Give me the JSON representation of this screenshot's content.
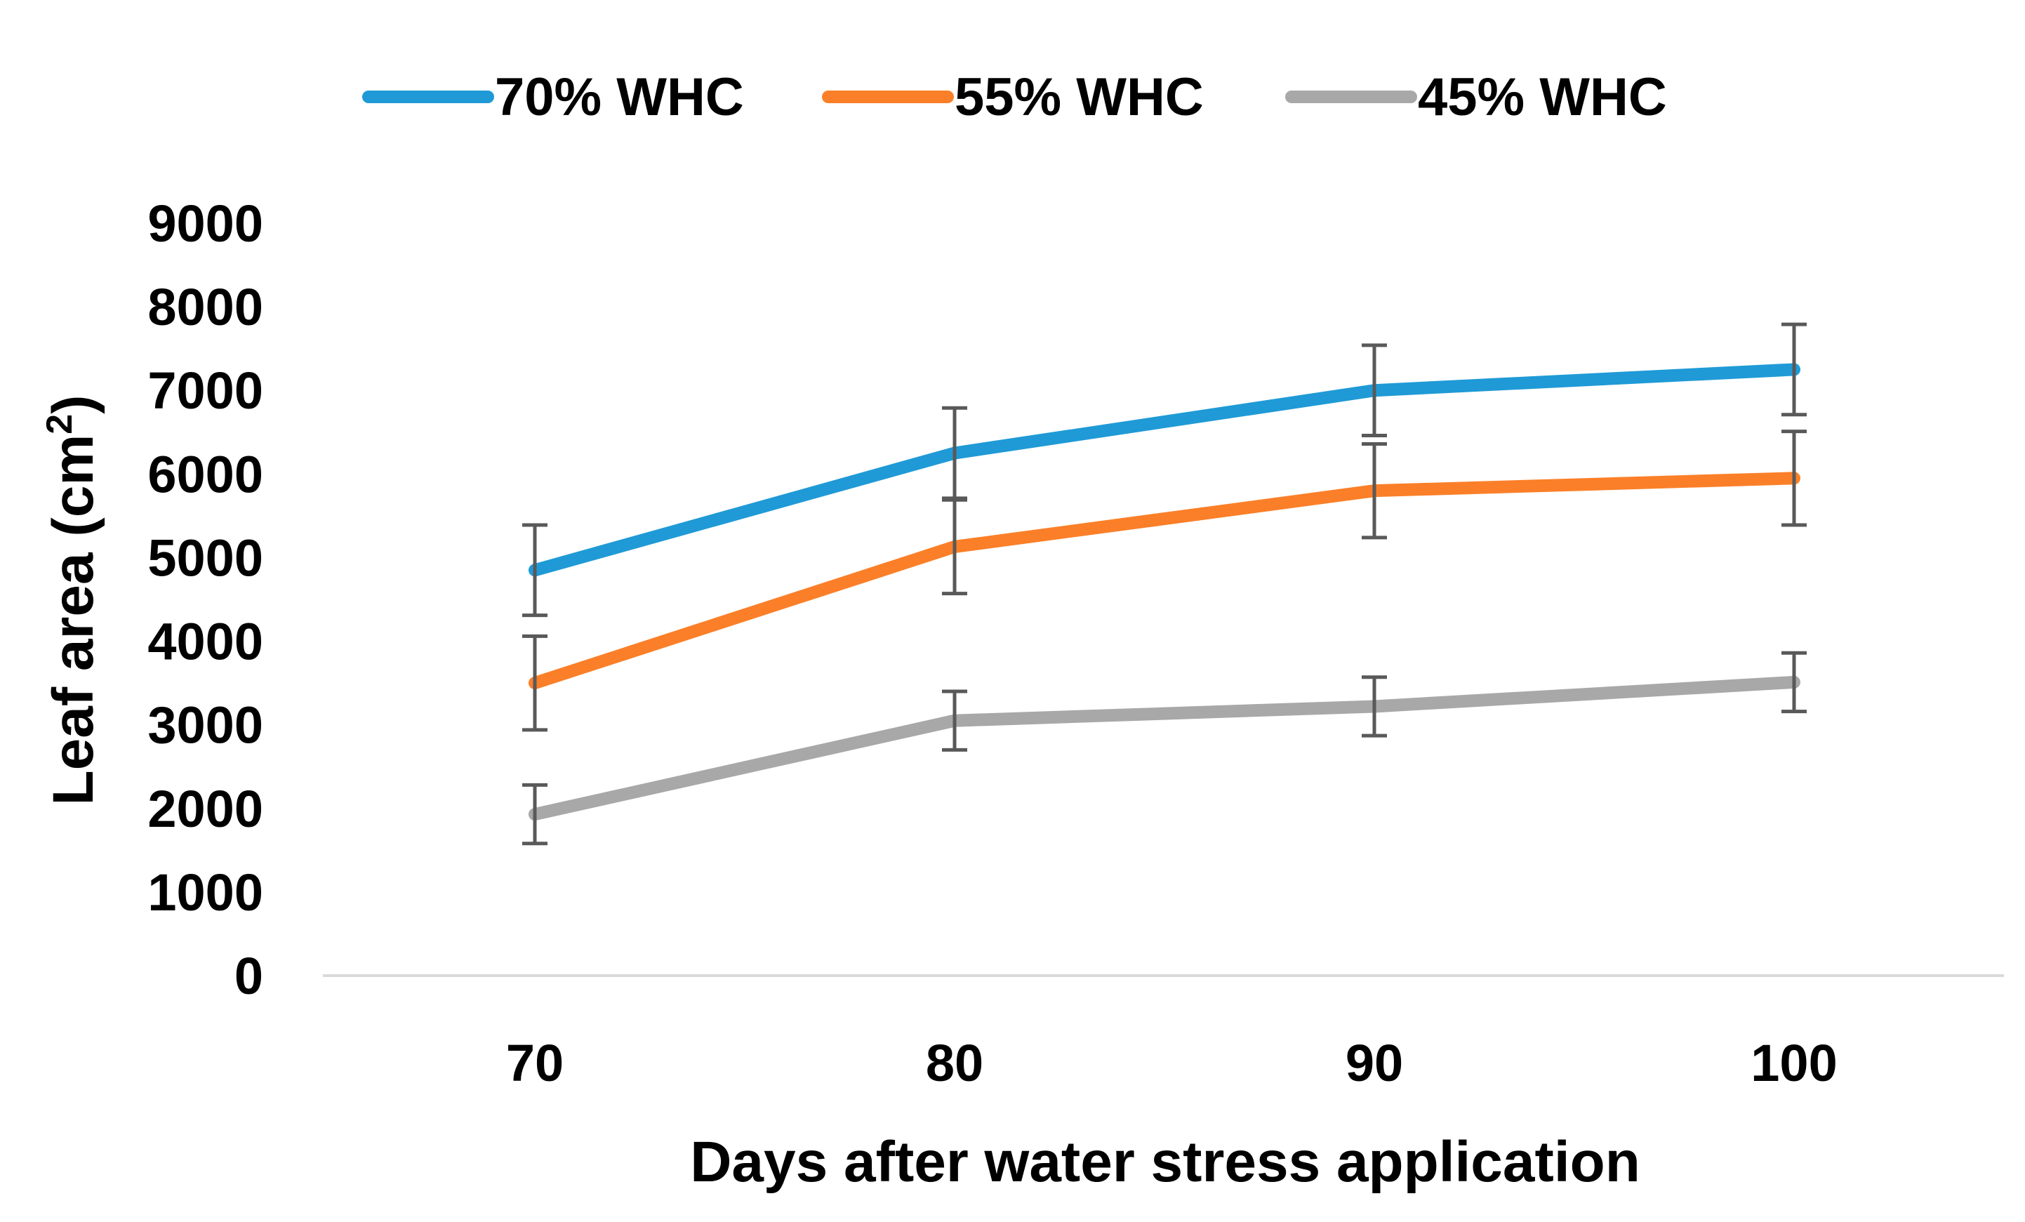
{
  "chart_data": {
    "type": "line",
    "title": "",
    "xlabel": "Days after water stress application",
    "ylabel": "Leaf area (cm",
    "ylabel_superscript": "2",
    "ylabel_close": ")",
    "categories": [
      "70",
      "80",
      "90",
      "100"
    ],
    "x": [
      70,
      80,
      90,
      100
    ],
    "ylim": [
      0,
      9000
    ],
    "yticks": [
      0,
      1000,
      2000,
      3000,
      4000,
      5000,
      6000,
      7000,
      8000,
      9000
    ],
    "ytick_labels": [
      "0",
      "1000",
      "2000",
      "3000",
      "4000",
      "5000",
      "6000",
      "7000",
      "8000",
      "9000"
    ],
    "grid": false,
    "legend_position": "top-center",
    "series": [
      {
        "name": "70% WHC",
        "color": "#1f9ad6",
        "values": [
          4850,
          6250,
          7000,
          7250
        ],
        "errors": [
          540,
          540,
          540,
          540
        ]
      },
      {
        "name": "55% WHC",
        "color": "#fb7f28",
        "values": [
          3500,
          5130,
          5800,
          5950
        ],
        "errors": [
          560,
          560,
          560,
          560
        ]
      },
      {
        "name": "45% WHC",
        "color": "#a8a8a8",
        "values": [
          1930,
          3050,
          3220,
          3510
        ],
        "errors": [
          350,
          350,
          350,
          350
        ]
      }
    ],
    "axis_color": "#d9d9d9",
    "errorbar_color": "#595959"
  }
}
